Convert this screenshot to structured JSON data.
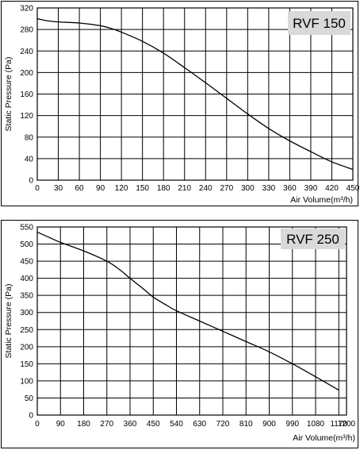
{
  "chart_data": [
    {
      "type": "line",
      "title": "RVF 150",
      "xlabel": "Air Volume(m³/h)",
      "ylabel": "Static Pressure (Pa)",
      "xlim": [
        0,
        450
      ],
      "ylim": [
        0,
        320
      ],
      "x_ticks": [
        0,
        30,
        60,
        90,
        120,
        150,
        180,
        210,
        240,
        270,
        300,
        330,
        360,
        390,
        420,
        450
      ],
      "y_ticks": [
        0,
        40,
        80,
        120,
        160,
        200,
        240,
        280,
        320
      ],
      "grid": true,
      "series": [
        {
          "x": [
            0,
            15,
            30,
            60,
            90,
            105,
            120,
            150,
            180,
            210,
            240,
            270,
            300,
            330,
            360,
            390,
            420,
            450
          ],
          "y": [
            300,
            296,
            294,
            292,
            287,
            282,
            275,
            258,
            236,
            209,
            181,
            152,
            123,
            96,
            73,
            53,
            34,
            20
          ]
        }
      ]
    },
    {
      "type": "line",
      "title": "RVF 250",
      "xlabel": "Air Volume(m³/h)",
      "ylabel": "Static Pressure (Pa)",
      "xlim": [
        0,
        1200
      ],
      "ylim": [
        0,
        550
      ],
      "x_ticks": [
        0,
        90,
        180,
        270,
        360,
        450,
        540,
        630,
        720,
        810,
        900,
        990,
        1080,
        1170,
        1200
      ],
      "y_ticks": [
        0,
        50,
        100,
        150,
        200,
        250,
        300,
        350,
        400,
        450,
        500,
        550
      ],
      "grid": true,
      "series": [
        {
          "x": [
            0,
            45,
            90,
            180,
            270,
            320,
            360,
            410,
            450,
            500,
            540,
            630,
            720,
            810,
            900,
            990,
            1080,
            1170
          ],
          "y": [
            535,
            520,
            505,
            480,
            450,
            425,
            400,
            370,
            345,
            322,
            305,
            275,
            245,
            215,
            185,
            150,
            112,
            73
          ]
        }
      ]
    }
  ]
}
